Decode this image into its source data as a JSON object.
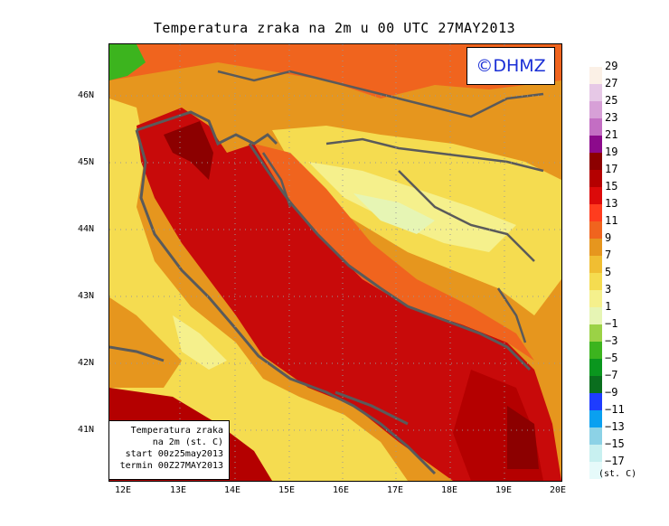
{
  "title": "Temperatura zraka na 2m u 00 UTC 27MAY2013",
  "logo": "©DHMZ",
  "info_box": [
    "Temperatura zraka",
    "na 2m (st. C)",
    "start 00z25may2013",
    "termin 00Z27MAY2013"
  ],
  "lat_labels": [
    "46N",
    "45N",
    "44N",
    "43N",
    "42N",
    "41N"
  ],
  "lon_labels": [
    "12E",
    "13E",
    "14E",
    "15E",
    "16E",
    "17E",
    "18E",
    "19E",
    "20E"
  ],
  "legend": {
    "unit": "(st. C)",
    "labels": [
      "29",
      "27",
      "25",
      "23",
      "21",
      "19",
      "17",
      "15",
      "13",
      "11",
      "9",
      "7",
      "5",
      "3",
      "1",
      "−1",
      "−3",
      "−5",
      "−7",
      "−9",
      "−11",
      "−13",
      "−15",
      "−17"
    ],
    "colors": [
      "#fbf0e6",
      "#e6c8e6",
      "#d7a0d7",
      "#c36ec3",
      "#8c0a8c",
      "#8c0000",
      "#b40000",
      "#dc0a0a",
      "#ff3c1e",
      "#f0641e",
      "#e6961e",
      "#f0be32",
      "#f5dc50",
      "#f5f08c",
      "#e6f5b4",
      "#9bd246",
      "#3cb41e",
      "#0a961e",
      "#0a6e1e",
      "#1e3cff",
      "#0aa0f0",
      "#8cd2e6",
      "#c8f0f0",
      "#e6fafa"
    ]
  },
  "colors": {
    "land_outline": "#5a5a5a",
    "sea_warm": "#c80a0a",
    "sea_core": "#d20f0f"
  }
}
